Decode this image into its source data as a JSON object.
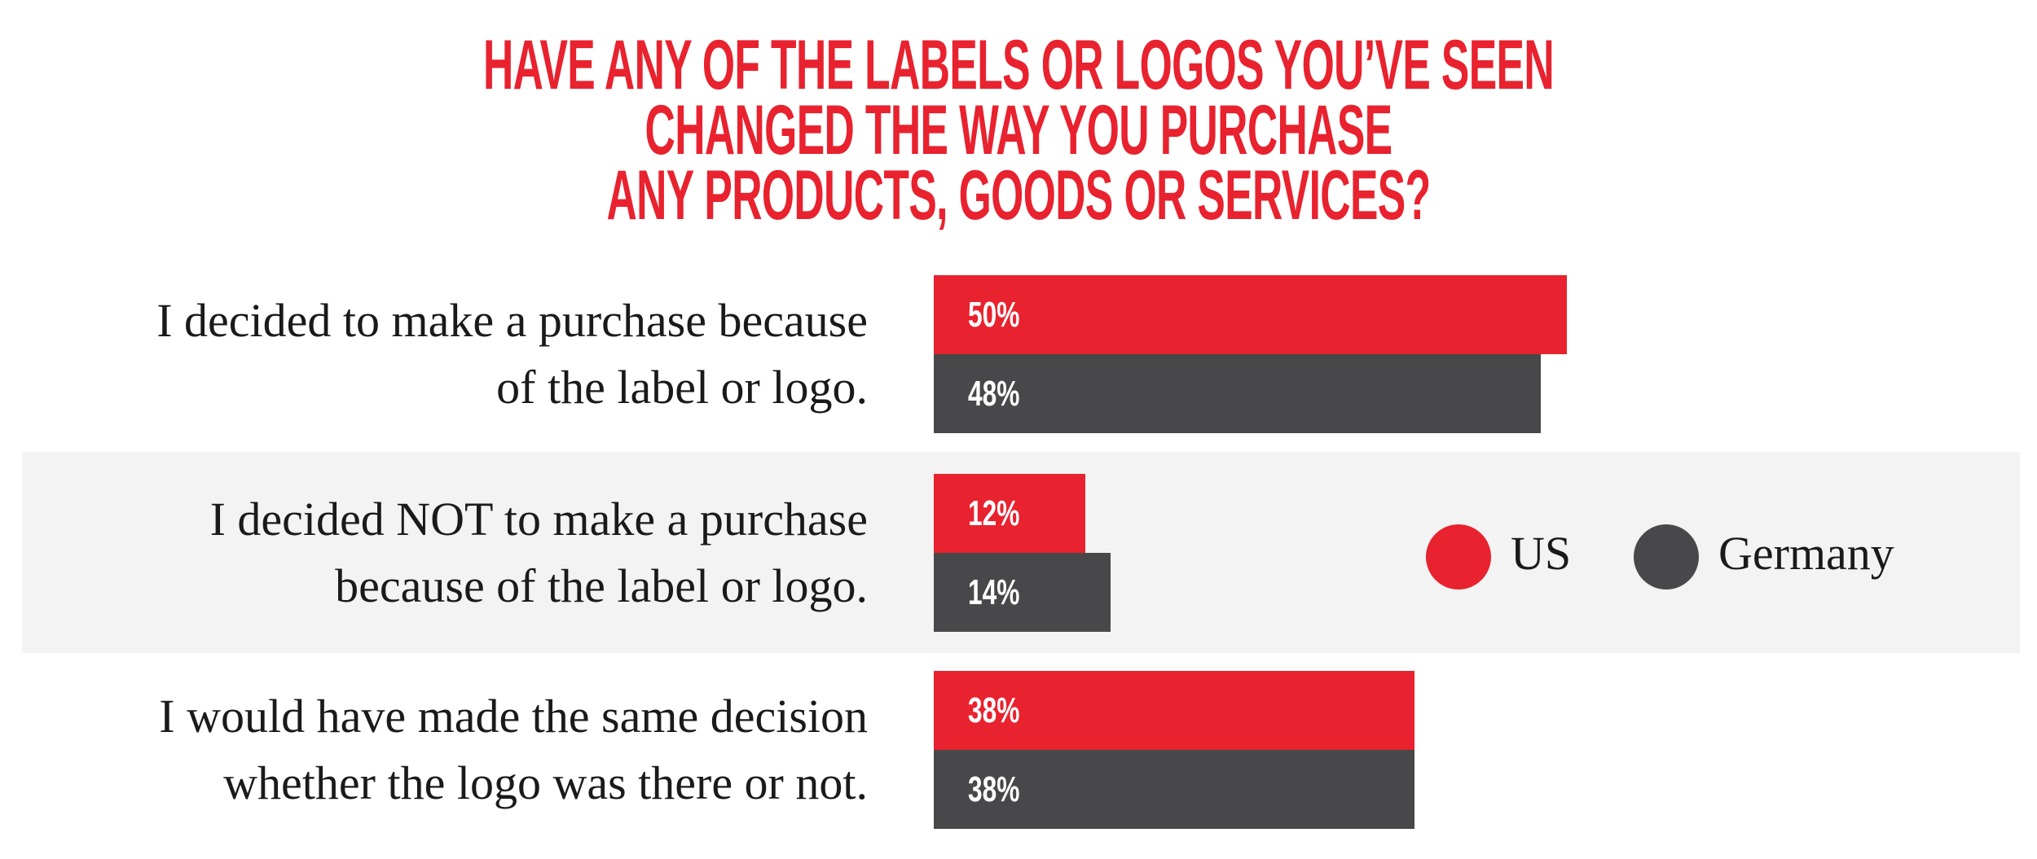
{
  "chart_data": {
    "type": "bar",
    "orientation": "horizontal",
    "title": "HAVE ANY OF THE LABELS OR LOGOS YOU’VE SEEN CHANGED THE WAY YOU PURCHASE\nANY PRODUCTS, GOODS OR SERVICES?",
    "categories": [
      "I decided to make a purchase because\nof the label or logo.",
      "I decided NOT to make a purchase\nbecause of the label or logo.",
      "I would have made the same decision\nwhether the logo was there or not."
    ],
    "series": [
      {
        "name": "US",
        "color": "#e8222e",
        "values": [
          50,
          12,
          38
        ],
        "value_labels": [
          "50%",
          "12%",
          "38%"
        ]
      },
      {
        "name": "Germany",
        "color": "#48484a",
        "values": [
          48,
          14,
          38
        ],
        "value_labels": [
          "48%",
          "14%",
          "38%"
        ]
      }
    ],
    "legend": "right"
  }
}
